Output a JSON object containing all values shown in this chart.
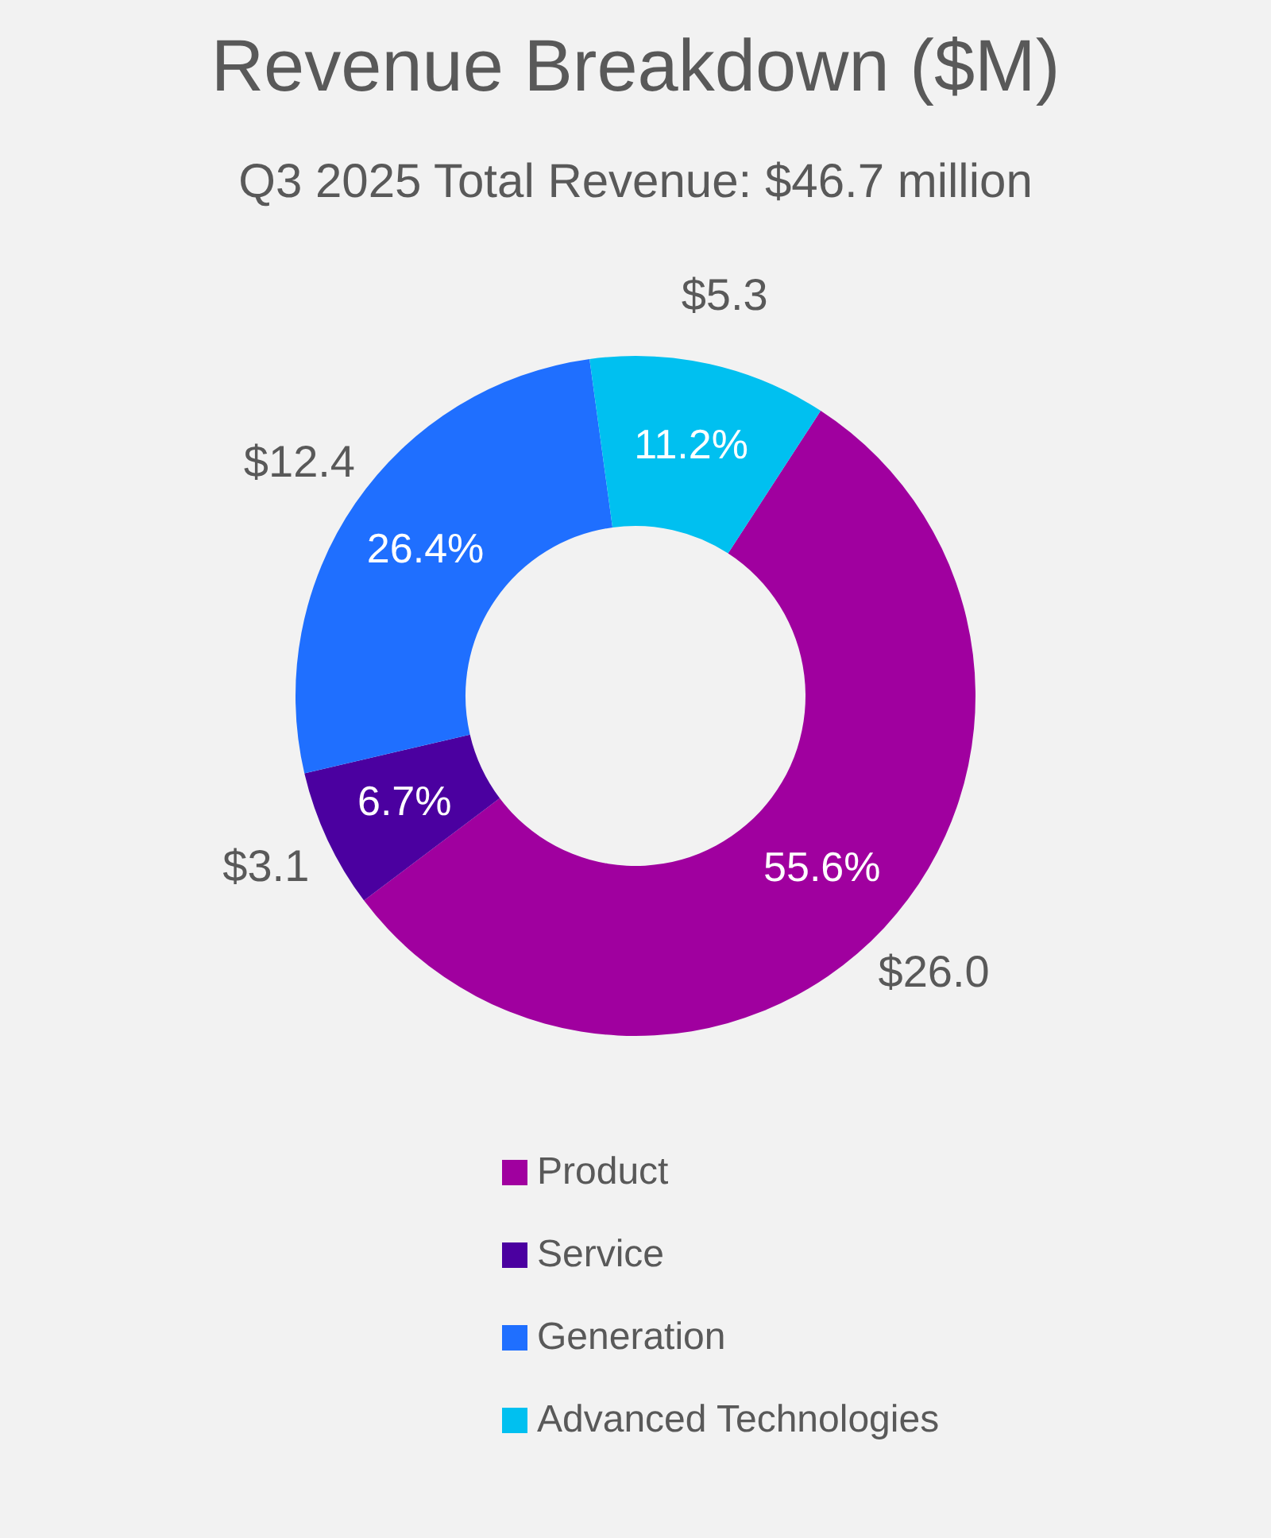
{
  "chart_data": {
    "type": "donut",
    "title": "Revenue Breakdown ($M)",
    "subtitle": "Q3 2025 Total Revenue: $46.7 million",
    "categories": [
      "Product",
      "Service",
      "Generation",
      "Advanced Technologies"
    ],
    "values": [
      26.0,
      3.1,
      12.4,
      5.3
    ],
    "colors": [
      "#a0009f",
      "#4b00a0",
      "#1f6fff",
      "#00c0f0"
    ],
    "value_labels": [
      "$26.0",
      "$3.1",
      "$12.4",
      "$5.3"
    ],
    "annotations": [
      {
        "text": "55.6%",
        "x": "Product"
      },
      {
        "text": "6.7%",
        "x": "Service"
      },
      {
        "text": "26.4%",
        "x": "Generation"
      },
      {
        "text": "11.2%",
        "x": "Advanced Technologies"
      }
    ],
    "legend": "bottom"
  }
}
